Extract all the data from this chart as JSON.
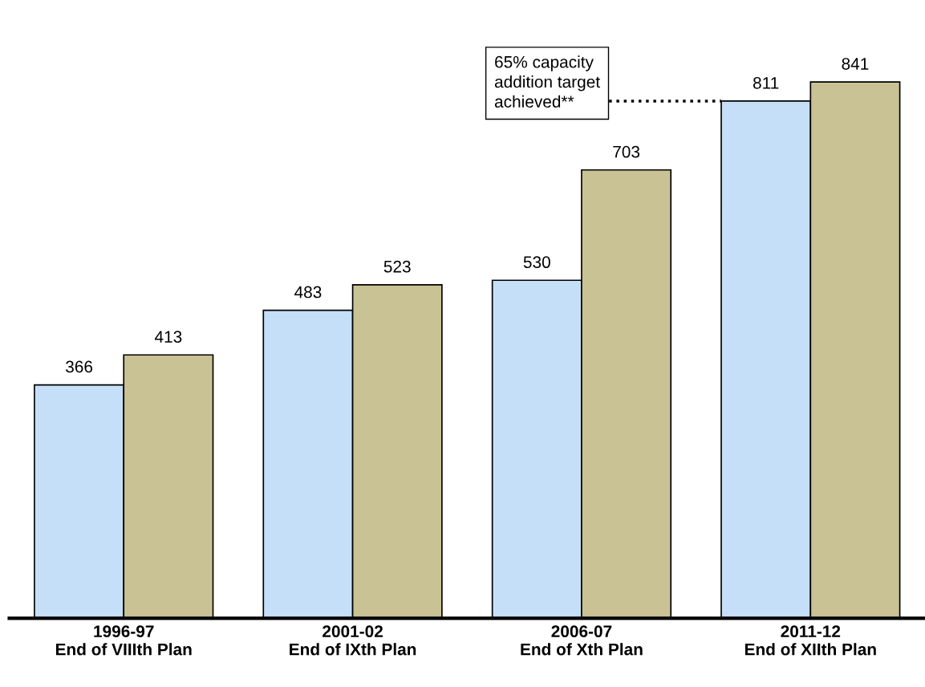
{
  "chart_data": {
    "type": "bar",
    "categories": [
      "1996-97\nEnd of VIIIth Plan",
      "2001-02\nEnd of IXth Plan",
      "2006-07\nEnd of Xth Plan",
      "2011-12\nEnd of XIIth Plan"
    ],
    "series": [
      {
        "color": "#c5dff8",
        "values": [
          366,
          483,
          530,
          811
        ]
      },
      {
        "color": "#c9c295",
        "values": [
          413,
          523,
          703,
          841
        ]
      }
    ],
    "data_labels": true,
    "grid": false,
    "tick_labels": "x",
    "ref_lines": [
      {
        "axis": "y",
        "value": 811,
        "label": "65% capacity\naddition target\nachieved**",
        "line_style": "dotted",
        "color": "#000000"
      }
    ]
  }
}
